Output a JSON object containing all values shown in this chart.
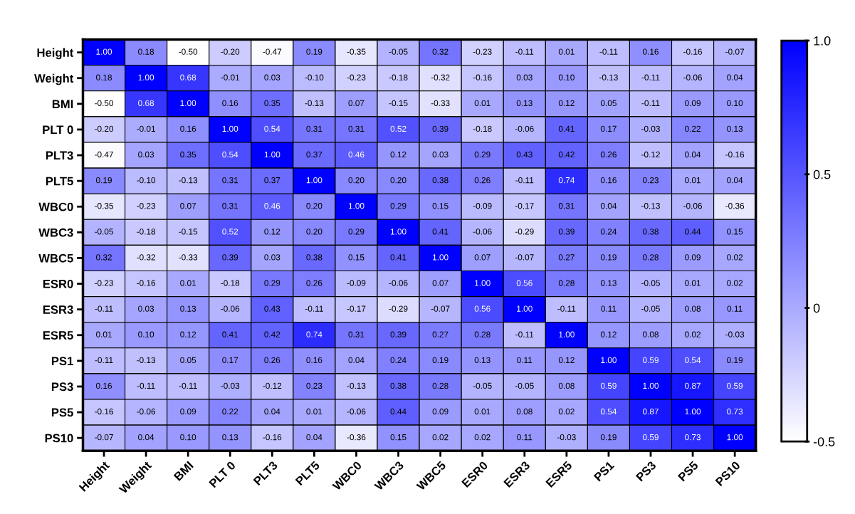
{
  "chart_data": {
    "type": "heatmap",
    "categories": [
      "Height",
      "Weight",
      "BMI",
      "PLT 0",
      "PLT3",
      "PLT5",
      "WBC0",
      "WBC3",
      "WBC5",
      "ESR0",
      "ESR3",
      "ESR5",
      "PS1",
      "PS3",
      "PS5",
      "PS10"
    ],
    "y_categories": [
      "Height",
      "Weight",
      "BMI",
      "PLT 0",
      "PLT3",
      "PLT5",
      "WBC0",
      "WBC3",
      "WBC5",
      "ESR0",
      "ESR3",
      "ESR5",
      "PS1",
      "PS3",
      "PS5",
      "PS10"
    ],
    "cells": [
      [
        1.0,
        0.18,
        -0.5,
        -0.2,
        -0.47,
        0.19,
        -0.35,
        -0.05,
        0.32,
        -0.23,
        -0.11,
        0.01,
        -0.11,
        0.16,
        -0.16,
        -0.07
      ],
      [
        0.18,
        1.0,
        0.68,
        -0.01,
        0.03,
        -0.1,
        -0.23,
        -0.18,
        -0.32,
        -0.16,
        0.03,
        0.1,
        -0.13,
        -0.11,
        -0.06,
        0.04
      ],
      [
        -0.5,
        0.68,
        1.0,
        0.16,
        0.35,
        -0.13,
        0.07,
        -0.15,
        -0.33,
        0.01,
        0.13,
        0.12,
        0.05,
        -0.11,
        0.09,
        0.1
      ],
      [
        -0.2,
        -0.01,
        0.16,
        1.0,
        0.54,
        0.31,
        0.31,
        0.52,
        0.39,
        -0.18,
        -0.06,
        0.41,
        0.17,
        -0.03,
        0.22,
        0.13
      ],
      [
        -0.47,
        0.03,
        0.35,
        0.54,
        1.0,
        0.37,
        0.46,
        0.12,
        0.03,
        0.29,
        0.43,
        0.42,
        0.26,
        -0.12,
        0.04,
        -0.16
      ],
      [
        0.19,
        -0.1,
        -0.13,
        0.31,
        0.37,
        1.0,
        0.2,
        0.2,
        0.38,
        0.26,
        -0.11,
        0.74,
        0.16,
        0.23,
        0.01,
        0.04
      ],
      [
        -0.35,
        -0.23,
        0.07,
        0.31,
        0.46,
        0.2,
        1.0,
        0.29,
        0.15,
        -0.09,
        -0.17,
        0.31,
        0.04,
        -0.13,
        -0.06,
        -0.36
      ],
      [
        -0.05,
        -0.18,
        -0.15,
        0.52,
        0.12,
        0.2,
        0.29,
        1.0,
        0.41,
        -0.06,
        -0.29,
        0.39,
        0.24,
        0.38,
        0.44,
        0.15
      ],
      [
        0.32,
        -0.32,
        -0.33,
        0.39,
        0.03,
        0.38,
        0.15,
        0.41,
        1.0,
        0.07,
        -0.07,
        0.27,
        0.19,
        0.28,
        0.09,
        0.02
      ],
      [
        -0.23,
        -0.16,
        0.01,
        -0.18,
        0.29,
        0.26,
        -0.09,
        -0.06,
        0.07,
        1.0,
        0.56,
        0.28,
        0.13,
        -0.05,
        0.01,
        0.02
      ],
      [
        -0.11,
        0.03,
        0.13,
        -0.06,
        0.43,
        -0.11,
        -0.17,
        -0.29,
        -0.07,
        0.56,
        1.0,
        -0.11,
        0.11,
        -0.05,
        0.08,
        0.11
      ],
      [
        0.01,
        0.1,
        0.12,
        0.41,
        0.42,
        0.74,
        0.31,
        0.39,
        0.27,
        0.28,
        -0.11,
        1.0,
        0.12,
        0.08,
        0.02,
        -0.03
      ],
      [
        -0.11,
        -0.13,
        0.05,
        0.17,
        0.26,
        0.16,
        0.04,
        0.24,
        0.19,
        0.13,
        0.11,
        0.12,
        1.0,
        0.59,
        0.54,
        0.19
      ],
      [
        0.16,
        -0.11,
        -0.11,
        -0.03,
        -0.12,
        0.23,
        -0.13,
        0.38,
        0.28,
        -0.05,
        -0.05,
        0.08,
        0.59,
        1.0,
        0.87,
        0.59
      ],
      [
        -0.16,
        -0.06,
        0.09,
        0.22,
        0.04,
        0.01,
        -0.06,
        0.44,
        0.09,
        0.01,
        0.08,
        0.02,
        0.54,
        0.87,
        1.0,
        0.73
      ],
      [
        -0.07,
        0.04,
        0.1,
        0.13,
        -0.16,
        0.04,
        -0.36,
        0.15,
        0.02,
        0.02,
        0.11,
        -0.03,
        0.19,
        0.59,
        0.73,
        1.0
      ]
    ],
    "colors": [
      "#ffffff",
      "#0000ff"
    ],
    "clim": [
      -0.5,
      1.0
    ],
    "cticks": [
      {
        "value": -0.5,
        "label": "-0.5"
      },
      0,
      0.5,
      {
        "value": 1.0,
        "label": "1.0"
      }
    ],
    "cell_labels": [
      [
        "1.00",
        "0.18",
        "-0.50",
        "-0.20",
        "-0.47",
        "0.19",
        "-0.35",
        "-0.05",
        "0.32",
        "-0.23",
        "-0.11",
        "0.01",
        "-0.11",
        "0.16",
        "-0.16",
        "-0.07"
      ],
      [
        "0.18",
        "1.00",
        "0.68",
        "-0.01",
        "0.03",
        "-0.10",
        "-0.23",
        "-0.18",
        "-0.32",
        "-0.16",
        "0.03",
        "0.10",
        "-0.13",
        "-0.11",
        "-0.06",
        "0.04"
      ],
      [
        "-0.50",
        "0.68",
        "1.00",
        "0.16",
        "0.35",
        "-0.13",
        "0.07",
        "-0.15",
        "-0.33",
        "0.01",
        "0.13",
        "0.12",
        "0.05",
        "-0.11",
        "0.09",
        "0.10"
      ],
      [
        "-0.20",
        "-0.01",
        "0.16",
        "1.00",
        "0.54",
        "0.31",
        "0.31",
        "0.52",
        "0.39",
        "-0.18",
        "-0.06",
        "0.41",
        "0.17",
        "-0.03",
        "0.22",
        "0.13"
      ],
      [
        "-0.47",
        "0.03",
        "0.35",
        "0.54",
        "1.00",
        "0.37",
        "0.46",
        "0.12",
        "0.03",
        "0.29",
        "0.43",
        "0.42",
        "0.26",
        "-0.12",
        "0.04",
        "-0.16"
      ],
      [
        "0.19",
        "-0.10",
        "-0.13",
        "0.31",
        "0.37",
        "1.00",
        "0.20",
        "0.20",
        "0.38",
        "0.26",
        "-0.11",
        "0.74",
        "0.16",
        "0.23",
        "0.01",
        "0.04"
      ],
      [
        "-0.35",
        "-0.23",
        "0.07",
        "0.31",
        "0.46",
        "0.20",
        "1.00",
        "0.29",
        "0.15",
        "-0.09",
        "-0.17",
        "0.31",
        "0.04",
        "-0.13",
        "-0.06",
        "-0.36"
      ],
      [
        "-0.05",
        "-0.18",
        "-0.15",
        "0.52",
        "0.12",
        "0.20",
        "0.29",
        "1.00",
        "0.41",
        "-0.06",
        "-0.29",
        "0.39",
        "0.24",
        "0.38",
        "0.44",
        "0.15"
      ],
      [
        "0.32",
        "-0.32",
        "-0.33",
        "0.39",
        "0.03",
        "0.38",
        "0.15",
        "0.41",
        "1.00",
        "0.07",
        "-0.07",
        "0.27",
        "0.19",
        "0.28",
        "0.09",
        "0.02"
      ],
      [
        "-0.23",
        "-0.16",
        "0.01",
        "-0.18",
        "0.29",
        "0.26",
        "-0.09",
        "-0.06",
        "0.07",
        "1.00",
        "0.56",
        "0.28",
        "0.13",
        "-0.05",
        "0.01",
        "0.02"
      ],
      [
        "-0.11",
        "0.03",
        "0.13",
        "-0.06",
        "0.43",
        "-0.11",
        "-0.17",
        "-0.29",
        "-0.07",
        "0.56",
        "1.00",
        "-0.11",
        "0.11",
        "-0.05",
        "0.08",
        "0.11"
      ],
      [
        "0.01",
        "0.10",
        "0.12",
        "0.41",
        "0.42",
        "0.74",
        "0.31",
        "0.39",
        "0.27",
        "0.28",
        "-0.11",
        "1.00",
        "0.12",
        "0.08",
        "0.02",
        "-0.03"
      ],
      [
        "-0.11",
        "-0.13",
        "0.05",
        "0.17",
        "0.26",
        "0.16",
        "0.04",
        "0.24",
        "0.19",
        "0.13",
        "0.11",
        "0.12",
        "1.00",
        "0.59",
        "0.54",
        "0.19"
      ],
      [
        "0.16",
        "-0.11",
        "-0.11",
        "-0.03",
        "-0.12",
        "0.23",
        "-0.13",
        "0.38",
        "0.28",
        "-0.05",
        "-0.05",
        "0.08",
        "0.59",
        "1.00",
        "0.87",
        "0.59"
      ],
      [
        "-0.16",
        "-0.06",
        "0.09",
        "0.22",
        "0.04",
        "0.01",
        "-0.06",
        "0.44",
        "0.09",
        "0.01",
        "0.08",
        "0.02",
        "0.54",
        "0.87",
        "1.00",
        "0.73"
      ],
      [
        "-0.07",
        "0.04",
        "0.10",
        "0.13",
        "-0.16",
        "0.04",
        "-0.36",
        "0.15",
        "0.02",
        "0.02",
        "0.11",
        "-0.03",
        "0.19",
        "0.59",
        "0.73",
        "1.00"
      ]
    ]
  }
}
